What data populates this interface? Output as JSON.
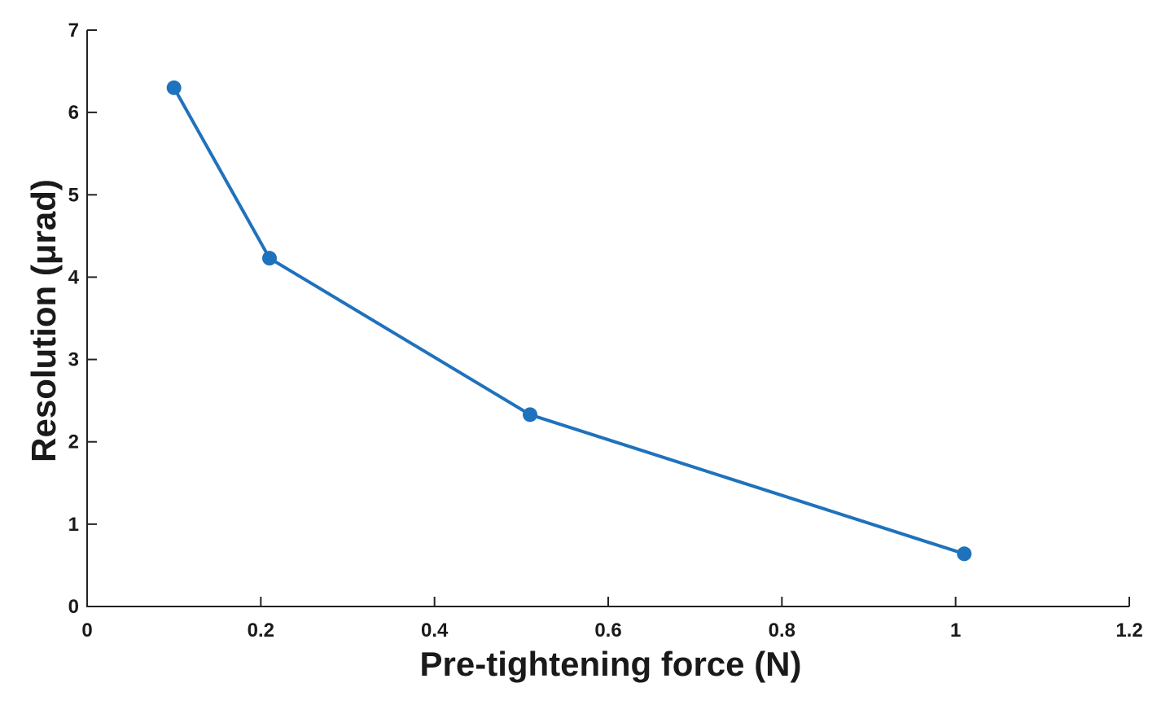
{
  "chart_data": {
    "type": "line",
    "title": "",
    "xlabel": "Pre-tightening force (N)",
    "ylabel": "Resolution (μrad)",
    "xlim": [
      0,
      1.2
    ],
    "ylim": [
      0,
      7
    ],
    "xticks": [
      "0",
      "0.2",
      "0.4",
      "0.6",
      "0.8",
      "1",
      "1.2"
    ],
    "yticks": [
      "0",
      "1",
      "2",
      "3",
      "4",
      "5",
      "6",
      "7"
    ],
    "grid": false,
    "series": [
      {
        "name": "Resolution",
        "color": "#1F72BC",
        "marker": "circle",
        "x": [
          0.1,
          0.21,
          0.51,
          1.01
        ],
        "y": [
          6.3,
          4.23,
          2.33,
          0.64
        ]
      }
    ]
  }
}
